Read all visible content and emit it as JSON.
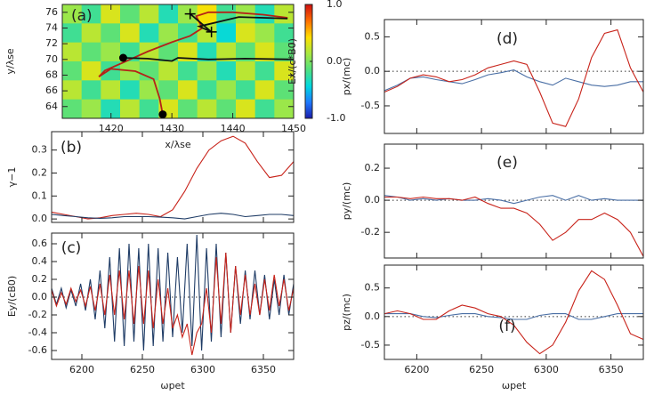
{
  "chart_data": [
    {
      "type": "heatmap",
      "title": "(a)",
      "xlabel": "x/λse",
      "ylabel": "y/λse",
      "clabel": "Ex/(c*B0)",
      "xlim": [
        1412,
        1450
      ],
      "xticks": [
        1420,
        1430,
        1440,
        1450
      ],
      "ylim": [
        62.5,
        77
      ],
      "yticks": [
        64,
        66,
        68,
        70,
        72,
        74,
        76
      ],
      "zlim": [
        -1,
        1
      ],
      "cticks": [
        {
          "value": -1,
          "label": "-1.0"
        },
        {
          "value": 0,
          "label": "0.0"
        },
        {
          "value": 1,
          "label": "1.0"
        }
      ],
      "colormap": [
        "#1a1aa8",
        "#1e78ff",
        "#00d8e0",
        "#50e080",
        "#a8e840",
        "#ffe000",
        "#ff7000",
        "#d01010"
      ],
      "z": [
        [
          0.1,
          -0.2,
          0.3,
          -0.1,
          0.2,
          -0.3,
          0.1,
          0.4,
          -0.2,
          0.1,
          -0.3,
          0.2
        ],
        [
          -0.2,
          0.2,
          -0.1,
          0.3,
          -0.3,
          0.1,
          -0.2,
          0.2,
          -0.4,
          0.3,
          0.1,
          -0.2
        ],
        [
          0.2,
          -0.1,
          0.1,
          -0.2,
          0.2,
          -0.1,
          0.3,
          -0.3,
          0.2,
          -0.1,
          0.3,
          -0.1
        ],
        [
          -0.1,
          0.3,
          -0.2,
          0.1,
          -0.1,
          0.2,
          -0.2,
          0.1,
          -0.3,
          0.2,
          -0.2,
          0.3
        ],
        [
          0.2,
          -0.2,
          0.2,
          -0.3,
          0.1,
          -0.1,
          0.3,
          -0.2,
          0.1,
          -0.2,
          0.3,
          -0.1
        ],
        [
          -0.1,
          0.1,
          -0.3,
          0.2,
          -0.2,
          0.3,
          -0.1,
          0.2,
          -0.1,
          0.3,
          -0.2,
          0.1
        ]
      ],
      "series": [
        {
          "color": "#b52218",
          "marker": "dot-start",
          "x": [
            1428.5,
            1428,
            1427,
            1424,
            1420,
            1418,
            1419,
            1422,
            1426,
            1430,
            1433,
            1435,
            1434,
            1436,
            1440,
            1445,
            1449
          ],
          "values": [
            63,
            65,
            67.5,
            68.5,
            68.8,
            67.8,
            68.6,
            69.6,
            71,
            72.2,
            73,
            74,
            75.5,
            76,
            76,
            75.7,
            75.3
          ]
        },
        {
          "color": "#111111",
          "marker": "dot-start",
          "x": [
            1422,
            1426,
            1430,
            1431,
            1436,
            1442,
            1450
          ],
          "values": [
            70.2,
            70.1,
            69.8,
            70.2,
            70,
            70.1,
            70
          ]
        },
        {
          "color": "#111111",
          "marker": "plus-ends",
          "x": [
            1433,
            1436.5,
            1434.5,
            1441,
            1449
          ],
          "values": [
            75.8,
            73.5,
            74.2,
            75.4,
            75.2
          ]
        }
      ]
    },
    {
      "type": "line",
      "title": "(b)",
      "ylabel": "γ−1",
      "show_xtick_labels": false,
      "xlim": [
        6175,
        6375
      ],
      "xticks": [
        6200,
        6250,
        6300,
        6350
      ],
      "ylim": [
        -0.015,
        0.38
      ],
      "yticks": [
        {
          "value": 0,
          "label": "0.0"
        },
        {
          "value": 0.1,
          "label": "0.1"
        },
        {
          "value": 0.2,
          "label": "0.2"
        },
        {
          "value": 0.3,
          "label": "0.3"
        }
      ],
      "x": [
        6175,
        6185,
        6195,
        6205,
        6215,
        6225,
        6235,
        6245,
        6255,
        6265,
        6275,
        6285,
        6295,
        6305,
        6315,
        6325,
        6335,
        6345,
        6355,
        6365,
        6375
      ],
      "series": [
        {
          "color": "#c8231a",
          "values": [
            0.03,
            0.02,
            0.01,
            0.0,
            0.005,
            0.015,
            0.02,
            0.025,
            0.02,
            0.01,
            0.04,
            0.12,
            0.22,
            0.3,
            0.34,
            0.36,
            0.33,
            0.25,
            0.18,
            0.19,
            0.25
          ]
        },
        {
          "color": "#1f3c66",
          "values": [
            0.02,
            0.015,
            0.01,
            0.005,
            0.003,
            0.005,
            0.01,
            0.01,
            0.01,
            0.008,
            0.005,
            0.0,
            0.01,
            0.02,
            0.025,
            0.02,
            0.01,
            0.015,
            0.02,
            0.02,
            0.015
          ]
        }
      ]
    },
    {
      "type": "line",
      "title": "(c)",
      "ylabel": "Ey/(cB0)",
      "xlabel": "ωpet",
      "zero_line": true,
      "xlim": [
        6175,
        6375
      ],
      "xticks": [
        6200,
        6250,
        6300,
        6350
      ],
      "ylim": [
        -0.7,
        0.72
      ],
      "yticks": [
        -0.6,
        -0.4,
        -0.2,
        {
          "value": 0,
          "label": "0.0"
        },
        0.2,
        0.4,
        0.6
      ],
      "x": [
        6175,
        6179,
        6183,
        6187,
        6191,
        6195,
        6199,
        6203,
        6207,
        6211,
        6215,
        6219,
        6223,
        6227,
        6231,
        6235,
        6239,
        6243,
        6247,
        6251,
        6255,
        6259,
        6263,
        6267,
        6271,
        6275,
        6279,
        6283,
        6287,
        6291,
        6295,
        6299,
        6303,
        6307,
        6311,
        6315,
        6319,
        6323,
        6327,
        6331,
        6335,
        6339,
        6343,
        6347,
        6351,
        6355,
        6359,
        6363,
        6367,
        6371,
        6375
      ],
      "series": [
        {
          "color": "#1f3c66",
          "values": [
            0.1,
            -0.08,
            0.1,
            -0.12,
            0.08,
            -0.1,
            0.15,
            -0.15,
            0.2,
            -0.25,
            0.3,
            -0.35,
            0.45,
            -0.5,
            0.55,
            -0.55,
            0.6,
            -0.5,
            0.55,
            -0.6,
            0.6,
            -0.55,
            0.55,
            -0.5,
            0.5,
            -0.45,
            0.45,
            -0.4,
            0.6,
            -0.55,
            0.7,
            -0.6,
            0.55,
            -0.5,
            0.6,
            -0.45,
            0.5,
            -0.4,
            0.35,
            -0.3,
            0.3,
            -0.25,
            0.3,
            -0.2,
            0.25,
            -0.25,
            0.2,
            -0.2,
            0.25,
            -0.2,
            0.15
          ]
        },
        {
          "color": "#c8231a",
          "values": [
            0.08,
            -0.1,
            0.05,
            -0.08,
            0.1,
            -0.05,
            0.08,
            -0.1,
            0.12,
            -0.15,
            0.15,
            -0.2,
            0.25,
            -0.2,
            0.3,
            -0.25,
            0.3,
            -0.3,
            0.35,
            -0.3,
            0.3,
            -0.35,
            0.2,
            -0.3,
            0.1,
            -0.35,
            -0.2,
            -0.45,
            -0.3,
            -0.65,
            -0.4,
            -0.3,
            0.1,
            -0.4,
            0.45,
            -0.3,
            0.5,
            -0.4,
            0.35,
            -0.2,
            0.25,
            -0.2,
            0.15,
            -0.2,
            0.2,
            -0.15,
            0.25,
            -0.1,
            0.2,
            -0.15,
            0.1
          ]
        }
      ]
    },
    {
      "type": "line",
      "title": "(d)",
      "ylabel": "px/(mc)",
      "show_xtick_labels": false,
      "zero_line": true,
      "xlim": [
        6175,
        6375
      ],
      "xticks": [
        6200,
        6250,
        6300,
        6350
      ],
      "ylim": [
        -0.9,
        0.75
      ],
      "yticks": [
        -0.5,
        {
          "value": 0,
          "label": "0.0"
        },
        0.5
      ],
      "x": [
        6175,
        6185,
        6195,
        6205,
        6215,
        6225,
        6235,
        6245,
        6255,
        6265,
        6275,
        6285,
        6295,
        6305,
        6315,
        6325,
        6335,
        6345,
        6355,
        6365,
        6375
      ],
      "series": [
        {
          "color": "#4a6fa5",
          "values": [
            -0.28,
            -0.2,
            -0.1,
            -0.08,
            -0.12,
            -0.15,
            -0.18,
            -0.12,
            -0.05,
            -0.02,
            0.02,
            -0.08,
            -0.15,
            -0.2,
            -0.1,
            -0.15,
            -0.2,
            -0.22,
            -0.2,
            -0.15,
            -0.15
          ]
        },
        {
          "color": "#c8231a",
          "values": [
            -0.3,
            -0.22,
            -0.1,
            -0.05,
            -0.08,
            -0.15,
            -0.12,
            -0.05,
            0.05,
            0.1,
            0.15,
            0.1,
            -0.3,
            -0.75,
            -0.8,
            -0.4,
            0.2,
            0.55,
            0.6,
            0.05,
            -0.3
          ]
        }
      ]
    },
    {
      "type": "line",
      "title": "(e)",
      "ylabel": "py/(mc)",
      "show_xtick_labels": false,
      "zero_line": true,
      "xlim": [
        6175,
        6375
      ],
      "xticks": [
        6200,
        6250,
        6300,
        6350
      ],
      "ylim": [
        -0.36,
        0.35
      ],
      "yticks": [
        -0.2,
        {
          "value": 0,
          "label": "0.0"
        },
        0.2
      ],
      "x": [
        6175,
        6185,
        6195,
        6205,
        6215,
        6225,
        6235,
        6245,
        6255,
        6265,
        6275,
        6285,
        6295,
        6305,
        6315,
        6325,
        6335,
        6345,
        6355,
        6365,
        6375
      ],
      "series": [
        {
          "color": "#4a6fa5",
          "values": [
            0.03,
            0.02,
            0.0,
            0.01,
            0.0,
            0.01,
            0.0,
            0.0,
            0.01,
            0.0,
            -0.02,
            0.0,
            0.02,
            0.03,
            0.0,
            0.03,
            0.0,
            0.01,
            0.0,
            0.0,
            0.0
          ]
        },
        {
          "color": "#c8231a",
          "values": [
            0.02,
            0.02,
            0.01,
            0.02,
            0.01,
            0.01,
            0.0,
            0.02,
            -0.02,
            -0.05,
            -0.05,
            -0.08,
            -0.15,
            -0.25,
            -0.2,
            -0.12,
            -0.12,
            -0.08,
            -0.12,
            -0.2,
            -0.35
          ]
        }
      ]
    },
    {
      "type": "line",
      "title": "(f)",
      "ylabel": "pz/(mc)",
      "xlabel": "ωpet",
      "zero_line": true,
      "xlim": [
        6175,
        6375
      ],
      "xticks": [
        6200,
        6250,
        6300,
        6350
      ],
      "ylim": [
        -0.75,
        0.9
      ],
      "yticks": [
        -0.5,
        {
          "value": 0,
          "label": "0.0"
        },
        0.5
      ],
      "x": [
        6175,
        6185,
        6195,
        6205,
        6215,
        6225,
        6235,
        6245,
        6255,
        6265,
        6275,
        6285,
        6295,
        6305,
        6315,
        6325,
        6335,
        6345,
        6355,
        6365,
        6375
      ],
      "series": [
        {
          "color": "#4a6fa5",
          "values": [
            0.05,
            0.05,
            0.05,
            0.0,
            -0.02,
            0.02,
            0.05,
            0.05,
            0.0,
            -0.02,
            -0.05,
            -0.05,
            0.02,
            0.05,
            0.05,
            -0.05,
            -0.05,
            0.0,
            0.05,
            0.05,
            0.05
          ]
        },
        {
          "color": "#c8231a",
          "values": [
            0.05,
            0.1,
            0.05,
            -0.05,
            -0.05,
            0.1,
            0.2,
            0.15,
            0.05,
            0.0,
            -0.15,
            -0.45,
            -0.65,
            -0.5,
            -0.1,
            0.45,
            0.8,
            0.65,
            0.2,
            -0.3,
            -0.4
          ]
        }
      ]
    }
  ]
}
